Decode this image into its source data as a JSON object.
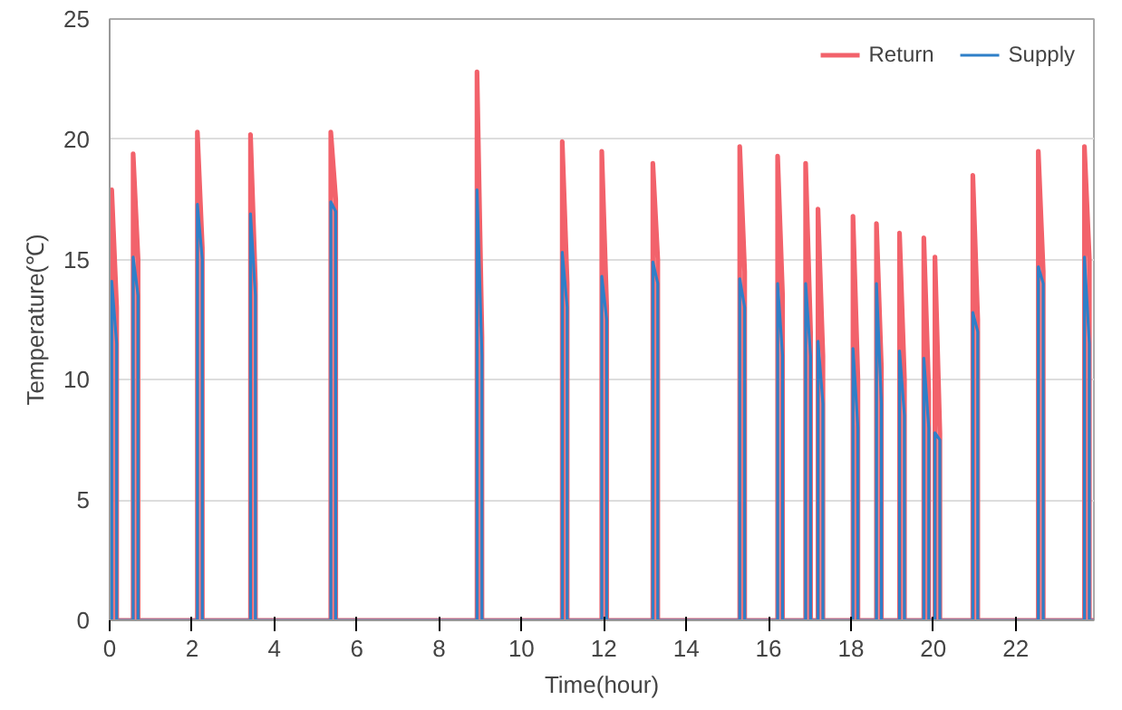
{
  "chart_data": {
    "type": "line",
    "xlabel": "Time(hour)",
    "ylabel": "Temperature(℃)",
    "xlim": [
      0,
      23.9
    ],
    "xticks": [
      0,
      2,
      4,
      6,
      8,
      10,
      12,
      14,
      16,
      18,
      20,
      22
    ],
    "ylim": [
      0,
      25
    ],
    "yticks": [
      0,
      5,
      10,
      15,
      20,
      25
    ],
    "grid": "y",
    "legend": "top right",
    "marker": "none",
    "line_style": "solid",
    "series": [
      {
        "name": "Return",
        "color": "#f2626b",
        "x": [
          0,
          0.05,
          0.05,
          0.17,
          0.17,
          0.57,
          0.57,
          0.69,
          0.69,
          2.13,
          2.13,
          2.25,
          2.25,
          3.42,
          3.42,
          3.54,
          3.54,
          5.37,
          5.37,
          5.49,
          5.49,
          8.92,
          8.92,
          9.04,
          9.04,
          10.99,
          10.99,
          11.11,
          11.11,
          11.95,
          11.95,
          12.07,
          12.07,
          13.19,
          13.19,
          13.31,
          13.31,
          15.3,
          15.3,
          15.42,
          15.42,
          16.22,
          16.22,
          16.34,
          16.34,
          16.9,
          16.9,
          17.02,
          17.02,
          17.2,
          17.2,
          17.32,
          17.32,
          18.05,
          18.05,
          18.17,
          18.17,
          18.62,
          18.62,
          18.74,
          18.74,
          19.18,
          19.18,
          19.3,
          19.3,
          19.77,
          19.77,
          19.89,
          19.89,
          20.04,
          20.04,
          20.16,
          20.16,
          20.96,
          20.96,
          21.08,
          21.08,
          22.55,
          22.55,
          22.67,
          22.67,
          23.67,
          23.67,
          23.79,
          23.79,
          23.9
        ],
        "values": [
          0,
          0,
          17.9,
          13.0,
          0,
          0,
          19.4,
          15.0,
          0,
          0,
          20.3,
          15.5,
          0,
          0,
          20.2,
          14.0,
          0,
          0,
          20.3,
          17.5,
          0,
          0,
          22.8,
          11.8,
          0,
          0,
          19.9,
          14.0,
          0,
          0,
          19.5,
          13.0,
          0,
          0,
          19.0,
          15.0,
          0,
          0,
          19.7,
          14.5,
          0,
          0,
          19.3,
          13.5,
          0,
          0,
          19.0,
          12.0,
          0,
          0,
          17.1,
          11.0,
          0,
          0,
          16.8,
          10.0,
          0,
          0,
          16.5,
          10.5,
          0,
          0,
          16.1,
          10.0,
          0,
          0,
          15.9,
          9.5,
          0,
          0,
          15.1,
          7.8,
          0,
          0,
          18.5,
          12.5,
          0,
          0,
          19.5,
          14.5,
          0,
          0,
          19.7,
          15.0,
          0,
          0
        ]
      },
      {
        "name": "Supply",
        "color": "#2f7fc8",
        "x": [
          0,
          0.05,
          0.05,
          0.17,
          0.17,
          0.57,
          0.57,
          0.69,
          0.69,
          2.13,
          2.13,
          2.25,
          2.25,
          3.42,
          3.42,
          3.54,
          3.54,
          5.37,
          5.37,
          5.49,
          5.49,
          8.92,
          8.92,
          9.04,
          9.04,
          10.99,
          10.99,
          11.11,
          11.11,
          11.95,
          11.95,
          12.07,
          12.07,
          13.19,
          13.19,
          13.31,
          13.31,
          15.3,
          15.3,
          15.42,
          15.42,
          16.22,
          16.22,
          16.34,
          16.34,
          16.9,
          16.9,
          17.02,
          17.02,
          17.2,
          17.2,
          17.32,
          17.32,
          18.05,
          18.05,
          18.17,
          18.17,
          18.62,
          18.62,
          18.74,
          18.74,
          19.18,
          19.18,
          19.3,
          19.3,
          19.77,
          19.77,
          19.89,
          19.89,
          20.04,
          20.04,
          20.16,
          20.16,
          20.96,
          20.96,
          21.08,
          21.08,
          22.55,
          22.55,
          22.67,
          22.67,
          23.67,
          23.67,
          23.79,
          23.79,
          23.9
        ],
        "values": [
          0,
          0,
          14.1,
          11.5,
          0,
          0,
          15.1,
          13.5,
          0,
          0,
          17.3,
          15.0,
          0,
          0,
          16.9,
          13.5,
          0,
          0,
          17.4,
          17.0,
          0,
          0,
          17.9,
          11.0,
          0,
          0,
          15.3,
          13.0,
          0,
          0,
          14.3,
          12.5,
          0,
          0,
          14.9,
          14.0,
          0,
          0,
          14.2,
          13.0,
          0,
          0,
          14.0,
          11.0,
          0,
          0,
          14.0,
          11.0,
          0,
          0,
          11.6,
          9.0,
          0,
          0,
          11.3,
          8.0,
          0,
          0,
          14.0,
          9.0,
          0,
          0,
          11.2,
          8.5,
          0,
          0,
          10.9,
          8.0,
          0,
          0,
          7.8,
          7.5,
          0,
          0,
          12.8,
          12.0,
          0,
          0,
          14.7,
          14.0,
          0,
          0,
          15.1,
          11.5,
          0,
          0
        ]
      }
    ]
  }
}
